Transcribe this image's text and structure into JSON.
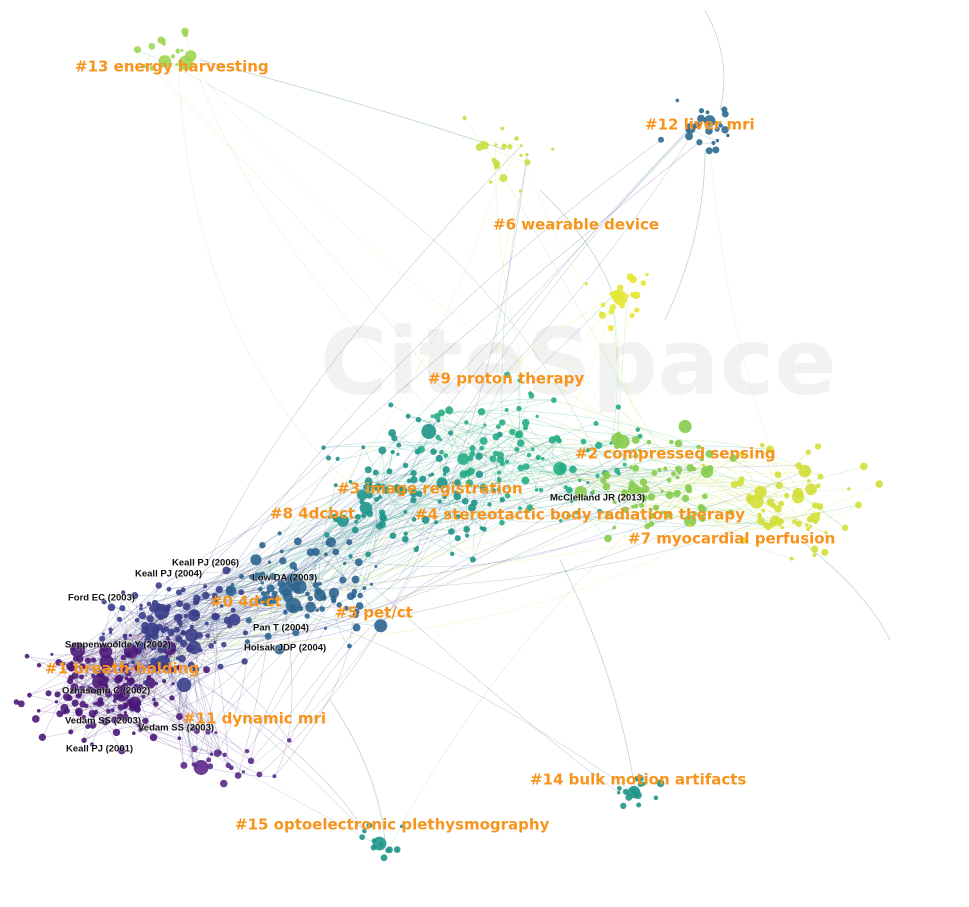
{
  "watermark": "CiteSpace",
  "clusters": [
    "#13 energy harvesting",
    "#12 liver mri",
    "#6 wearable device",
    "#9 proton therapy",
    "#2 compressed sensing",
    "#3 image registration",
    "#8 4dcbct",
    "#4 stereotactic body radiation therapy",
    "#7 myocardial perfusion",
    "#0 4d-ct",
    "#5 pet/ct",
    "#1 breath-holding",
    "#11 dynamic mri",
    "#14 bulk motion artifacts",
    "#15 optoelectronic plethysmography"
  ],
  "references": [
    "Keall PJ (2006)",
    "Keall PJ (2004)",
    "Low DA (2003)",
    "Ford EC (2003)",
    "Pan T (2004)",
    "Seppenwoolde Y (2002)",
    "Holsak JDP (2004)",
    "Ozhasoglu C (2002)",
    "Vedam SS (2003)",
    "Vedam SS (2003)",
    "Keall PJ (2001)",
    "McClelland JR (2013)"
  ]
}
